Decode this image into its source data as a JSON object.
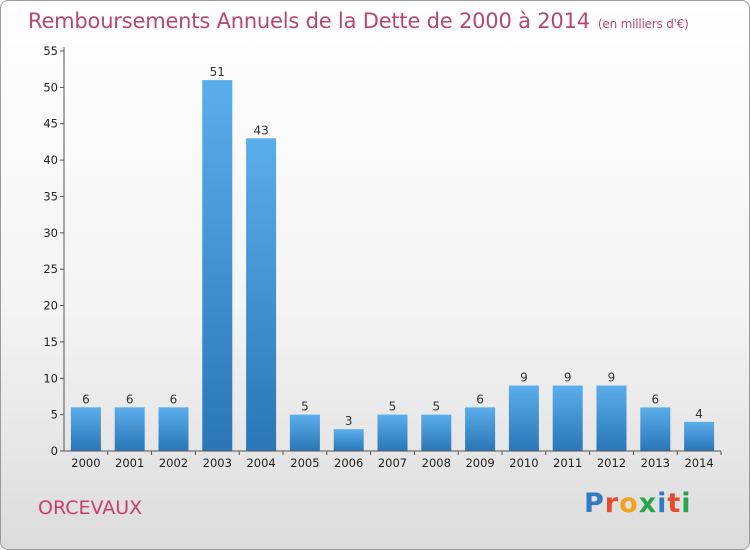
{
  "title": "Remboursements Annuels de la Dette de 2000 à 2014",
  "subtitle": "(en milliers d'€)",
  "town": "ORCEVAUX",
  "logo": {
    "letters": [
      "P",
      "r",
      "o",
      "x",
      "i",
      "t",
      "i"
    ],
    "colors": [
      "#2e7cc4",
      "#e84a2a",
      "#f2a31b",
      "#2aa34a",
      "#2e7cc4",
      "#e84a2a",
      "#2aa34a"
    ]
  },
  "chart_data": {
    "type": "bar",
    "categories": [
      "2000",
      "2001",
      "2002",
      "2003",
      "2004",
      "2005",
      "2006",
      "2007",
      "2008",
      "2009",
      "2010",
      "2011",
      "2012",
      "2013",
      "2014"
    ],
    "values": [
      6,
      6,
      6,
      51,
      43,
      5,
      3,
      5,
      5,
      6,
      9,
      9,
      9,
      6,
      4
    ],
    "ylim": [
      0,
      55
    ],
    "yticks": [
      0,
      5,
      10,
      15,
      20,
      25,
      30,
      35,
      40,
      45,
      50,
      55
    ],
    "grid": false,
    "bar_color": "#3d8fd6"
  }
}
